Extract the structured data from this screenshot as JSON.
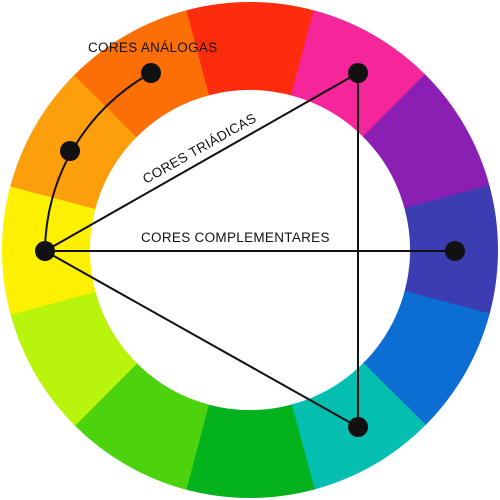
{
  "labels": {
    "analogous": "CORES ANÁLOGAS",
    "triadic": "CORES TRIÁDICAS",
    "complementary": "CORES COMPLEMENTARES"
  },
  "wheel": {
    "segments": [
      {
        "name": "red",
        "color": "#fe2c0c"
      },
      {
        "name": "magenta",
        "color": "#f5259a"
      },
      {
        "name": "purple",
        "color": "#8c1fb3"
      },
      {
        "name": "violet-blue",
        "color": "#3c3db3"
      },
      {
        "name": "blue",
        "color": "#0c6ed3"
      },
      {
        "name": "teal",
        "color": "#04bfb0"
      },
      {
        "name": "green",
        "color": "#04b21e"
      },
      {
        "name": "lime-green",
        "color": "#4dd20e"
      },
      {
        "name": "yellow-green",
        "color": "#b8f40c"
      },
      {
        "name": "yellow",
        "color": "#fdf000"
      },
      {
        "name": "orange",
        "color": "#fd9f0d"
      },
      {
        "name": "red-orange",
        "color": "#fc6e06"
      }
    ]
  },
  "colors": {
    "line": "#111111",
    "background": "#ffffff"
  }
}
